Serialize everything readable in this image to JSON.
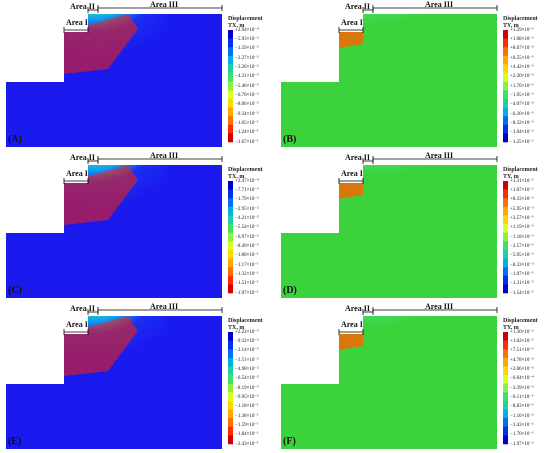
{
  "panels": [
    {
      "label": "(A)",
      "component": "TX",
      "cbar_title_1": "Displacement",
      "cbar_title_2": "TX, m",
      "cbar_labels": [
        "+2.94×10⁻⁴",
        "−5.93×10⁻³",
        "−1.59×10⁻²",
        "−2.27×10⁻²",
        "−3.26×10⁻²",
        "−4.31×10⁻²",
        "−5.46×10⁻²",
        "−6.70×10⁻²",
        "−8.06×10⁻²",
        "−9.34×10⁻²",
        "−1.05×10⁻¹",
        "−1.24×10⁻¹",
        "−1.67×10⁻¹"
      ],
      "area_labels": {
        "area1": "Area I",
        "area2": "Area II",
        "area3": "Area III"
      }
    },
    {
      "label": "(B)",
      "component": "TY",
      "cbar_title_1": "Displacement",
      "cbar_title_2": "TY, m",
      "cbar_labels": [
        "+1.29×10⁻³",
        "+1.08×10⁻³",
        "+8.67×10⁻³",
        "+6.55×10⁻³",
        "+4.42×10⁻³",
        "+2.30×10⁻³",
        "+1.76×10⁻³",
        "−1.95×10⁻³",
        "−4.07×10⁻³",
        "−6.20×10⁻³",
        "−8.32×10⁻³",
        "−1.04×10⁻²",
        "−1.25×10⁻²"
      ],
      "area_labels": {
        "area1": "Area I",
        "area2": "Area II",
        "area3": "Area III"
      }
    },
    {
      "label": "(C)",
      "component": "TX",
      "cbar_title_1": "Displacement",
      "cbar_title_2": "TX, m",
      "cbar_labels": [
        "+2.47×10⁻⁴",
        "−7.71×10⁻³",
        "−1.79×10⁻²",
        "−2.95×10⁻²",
        "−4.21×10⁻²",
        "−5.54×10⁻²",
        "−6.97×10⁻²",
        "−8.49×10⁻²",
        "−1.00×10⁻¹",
        "−1.17×10⁻¹",
        "−1.32×10⁻¹",
        "−1.51×10⁻¹",
        "−1.97×10⁻¹"
      ],
      "area_labels": {
        "area1": "Area I",
        "area2": "Area II",
        "area3": "Area III"
      }
    },
    {
      "label": "(D)",
      "component": "TY",
      "cbar_title_1": "Displacement",
      "cbar_title_2": "TY, m",
      "cbar_labels": [
        "+1.31×10⁻²",
        "+1.07×10⁻²",
        "+8.33×10⁻³",
        "+5.95×10⁻³",
        "+3.57×10⁻³",
        "+1.19×10⁻³",
        "−1.18×10⁻³",
        "−3.57×10⁻³",
        "−5.95×10⁻³",
        "−8.33×10⁻³",
        "−1.07×10⁻²",
        "−1.31×10⁻²",
        "−1.54×10⁻²"
      ],
      "area_labels": {
        "area1": "Area I",
        "area2": "Area II",
        "area3": "Area III"
      }
    },
    {
      "label": "(E)",
      "component": "TX",
      "cbar_title_1": "Displacement",
      "cbar_title_2": "TX, m",
      "cbar_labels": [
        "+2.22×10⁻⁵",
        "−9.32×10⁻³",
        "−2.14×10⁻²",
        "−3.51×10⁻²",
        "−4.98×10⁻²",
        "−6.54×10⁻²",
        "−8.19×10⁻²",
        "−9.95×10⁻²",
        "−1.18×10⁻¹",
        "−1.38×10⁻¹",
        "−1.59×10⁻¹",
        "−1.84×10⁻¹",
        "−2.43×10⁻¹"
      ],
      "area_labels": {
        "area1": "Area I",
        "area2": "Area II",
        "area3": "Area III"
      }
    },
    {
      "label": "(F)",
      "component": "TY",
      "cbar_title_1": "Displacement",
      "cbar_title_2": "TY, m",
      "cbar_labels": [
        "+1.30×10⁻²",
        "+1.02×10⁻²",
        "+7.51×10⁻³",
        "+4.78×10⁻³",
        "+2.06×10⁻³",
        "−6.64×10⁻⁴",
        "−3.39×10⁻³",
        "−6.11×10⁻³",
        "−8.83×10⁻³",
        "−1.16×10⁻²",
        "−1.43×10⁻²",
        "−1.70×10⁻²",
        "−1.97×10⁻²"
      ],
      "area_labels": {
        "area1": "Area I",
        "area2": "Area II",
        "area3": "Area III"
      }
    }
  ],
  "colors": {
    "blue": "#1a1aef",
    "green": "#3cd23c",
    "red": "#e01010",
    "yellow": "#e8e020",
    "colormap": [
      "#d00000",
      "#ff2a00",
      "#ff7000",
      "#ffa800",
      "#ffd800",
      "#d8ff20",
      "#8cf040",
      "#40e060",
      "#20d0a0",
      "#00b0e0",
      "#0070f0",
      "#0030f0",
      "#0000c8"
    ]
  }
}
